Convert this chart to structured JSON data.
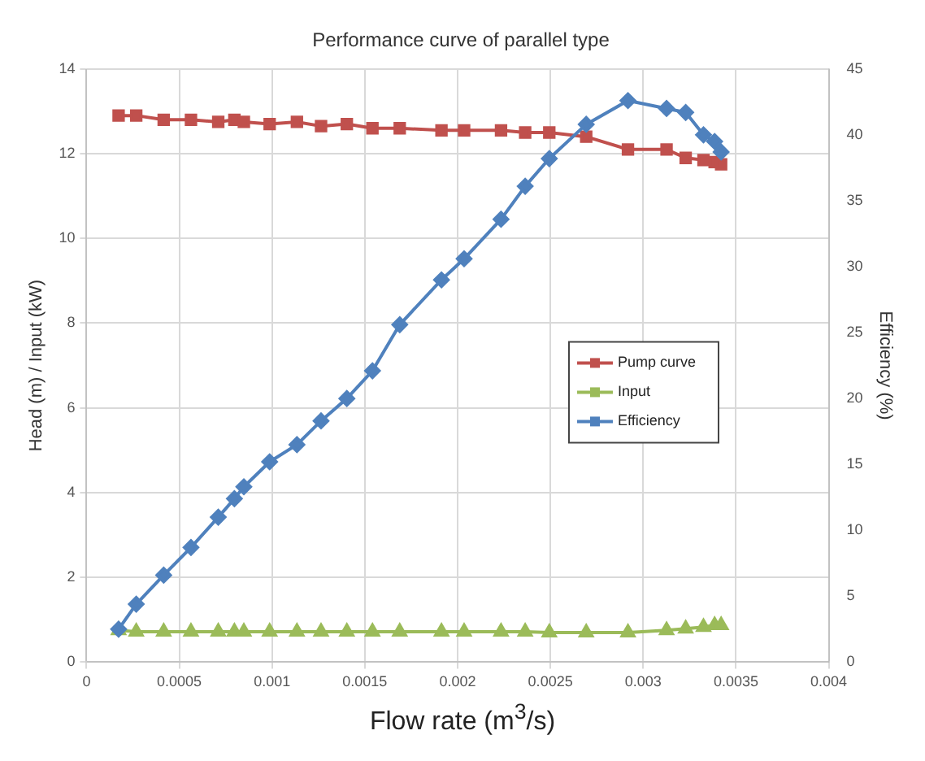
{
  "chart_data": {
    "type": "line",
    "title": "Performance curve of parallel type",
    "xlabel": "Flow rate (m$^{3}$/s)",
    "ylabel": "Head (m) / Input (kW)",
    "y2label": "Efficiency (%)",
    "x": [
      0.000173,
      0.000268,
      0.000416,
      0.000563,
      0.00071,
      0.000797,
      0.000848,
      0.000987,
      0.001134,
      0.001264,
      0.001403,
      0.001541,
      0.001688,
      0.001913,
      0.002035,
      0.002234,
      0.002364,
      0.002494,
      0.002693,
      0.002918,
      0.003126,
      0.003229,
      0.003325,
      0.003385,
      0.00342
    ],
    "series": [
      {
        "name": "Pump curve",
        "color": "#c0504d",
        "marker": "square",
        "values": [
          12.9,
          12.9,
          12.8,
          12.8,
          12.75,
          12.8,
          12.75,
          12.7,
          12.75,
          12.65,
          12.7,
          12.6,
          12.6,
          12.55,
          12.55,
          12.55,
          12.5,
          12.5,
          12.4,
          12.1,
          12.1,
          11.9,
          11.85,
          11.8,
          11.75
        ]
      },
      {
        "name": "Input",
        "color": "#9bbb59",
        "marker": "triangle",
        "values": [
          0.75,
          0.72,
          0.72,
          0.72,
          0.72,
          0.72,
          0.72,
          0.72,
          0.72,
          0.72,
          0.72,
          0.72,
          0.72,
          0.72,
          0.72,
          0.72,
          0.72,
          0.7,
          0.7,
          0.7,
          0.75,
          0.79,
          0.83,
          0.87,
          0.87
        ]
      },
      {
        "name": "Efficiency",
        "color": "#4f81bd",
        "marker": "diamond",
        "axis": "y2",
        "values": [
          2.5,
          4.4,
          6.6,
          8.7,
          11.0,
          12.4,
          13.3,
          15.2,
          16.5,
          18.3,
          20.0,
          22.1,
          25.6,
          29.0,
          30.6,
          33.6,
          36.1,
          38.2,
          40.8,
          42.6,
          42.0,
          41.7,
          40.0,
          39.5,
          38.7
        ]
      }
    ],
    "xlim": [
      0,
      0.004
    ],
    "xticks": [
      0,
      0.0005,
      0.001,
      0.0015,
      0.002,
      0.0025,
      0.003,
      0.0035,
      0.004
    ],
    "ylim": [
      0,
      14
    ],
    "yticks": [
      0,
      2,
      4,
      6,
      8,
      10,
      12,
      14
    ],
    "y2lim": [
      0,
      45
    ],
    "y2ticks": [
      0,
      5,
      10,
      15,
      20,
      25,
      30,
      35,
      40,
      45
    ],
    "grid": true,
    "legend": "right",
    "line_style": "solid"
  }
}
